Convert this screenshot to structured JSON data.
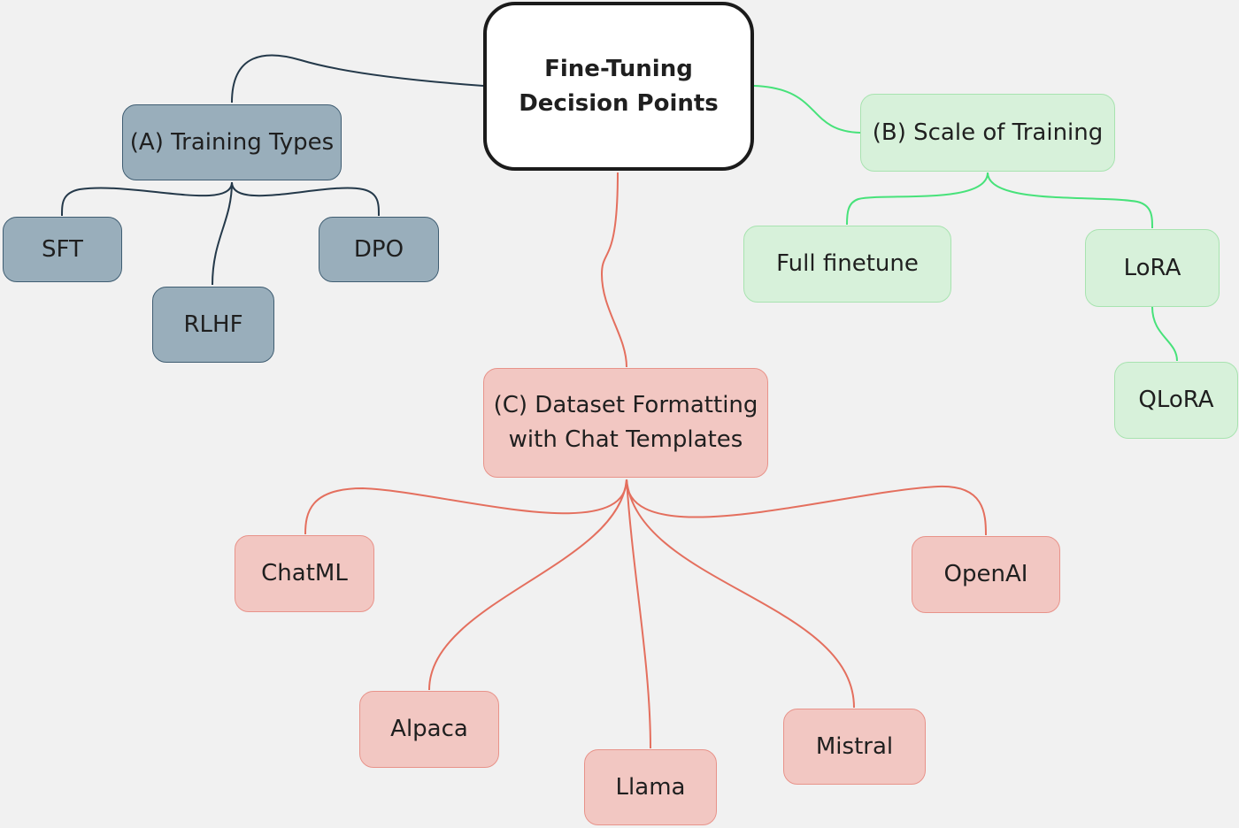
{
  "diagram": {
    "root": {
      "label": "Fine-Tuning\nDecision Points"
    },
    "branch_a": {
      "label": "(A) Training Types",
      "color": "#99aebb",
      "children": [
        "SFT",
        "RLHF",
        "DPO"
      ]
    },
    "branch_b": {
      "label": "(B) Scale of Training",
      "color": "#d7f1da",
      "children": [
        "Full finetune",
        "LoRA"
      ],
      "lora_child": "QLoRA"
    },
    "branch_c": {
      "label": "(C) Dataset Formatting\nwith Chat Templates",
      "color": "#f2c7c2",
      "children": [
        "ChatML",
        "Alpaca",
        "Llama",
        "Mistral",
        "OpenAI"
      ]
    }
  }
}
